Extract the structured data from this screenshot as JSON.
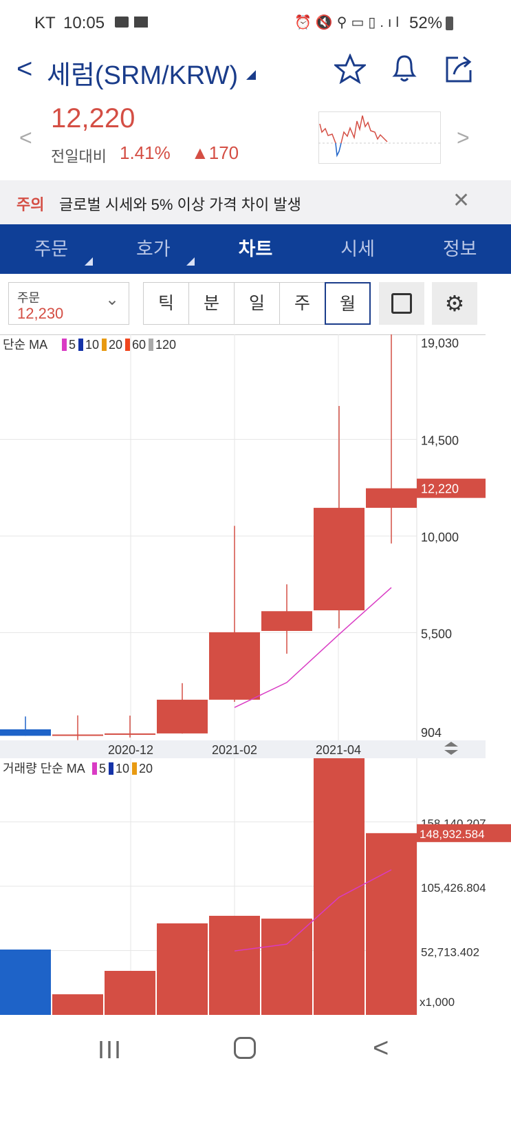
{
  "status_bar": {
    "carrier": "KT",
    "time": "10:05",
    "battery": "52%"
  },
  "header": {
    "title": "세럼(SRM/KRW)"
  },
  "price": {
    "current": "12,220",
    "change_label": "전일대비",
    "change_pct": "1.41%",
    "change_abs": "170"
  },
  "notice": {
    "tag": "주의",
    "message": "글로벌 시세와 5% 이상 가격 차이 발생"
  },
  "tabs": [
    {
      "label": "주문"
    },
    {
      "label": "호가"
    },
    {
      "label": "차트"
    },
    {
      "label": "시세"
    },
    {
      "label": "정보"
    }
  ],
  "order_box": {
    "label": "주문",
    "value": "12,230"
  },
  "periods": [
    "틱",
    "분",
    "일",
    "주",
    "월"
  ],
  "selected_period": "월",
  "colors": {
    "up": "#d44e44",
    "down": "#1e63c8",
    "ma5": "#d93bc4",
    "nav": "#0f3f97"
  },
  "chart_data": [
    {
      "type": "candlestick",
      "title": "단순 MA",
      "legend": [
        "5",
        "10",
        "20",
        "60",
        "120"
      ],
      "x_ticks": [
        "2020-12",
        "2021-02",
        "2021-04"
      ],
      "y_ticks": [
        "19,030",
        "14,500",
        "10,000",
        "5,500",
        "904"
      ],
      "y_tick_values": [
        19030,
        14500,
        10000,
        5500,
        904
      ],
      "ylim": [
        904,
        19030
      ],
      "current_label": "12,220",
      "current_value": 12220,
      "candles": [
        {
          "o": 1000,
          "h": 1600,
          "l": 700,
          "c": 700
        },
        {
          "o": 720,
          "h": 1650,
          "l": 500,
          "c": 760
        },
        {
          "o": 750,
          "h": 1640,
          "l": 620,
          "c": 810
        },
        {
          "o": 810,
          "h": 3150,
          "l": 800,
          "c": 2380
        },
        {
          "o": 2380,
          "h": 10470,
          "l": 2280,
          "c": 5520
        },
        {
          "o": 5580,
          "h": 7750,
          "l": 4520,
          "c": 6500
        },
        {
          "o": 6540,
          "h": 16050,
          "l": 5700,
          "c": 11310
        },
        {
          "o": 11310,
          "h": 19500,
          "l": 9650,
          "c": 12220
        }
      ],
      "ma5": [
        null,
        null,
        null,
        null,
        2020,
        3180,
        5420,
        7600
      ]
    },
    {
      "type": "bar",
      "title": "거래량 단순 MA",
      "legend": [
        "5",
        "10",
        "20"
      ],
      "y_ticks": [
        "158,140.207",
        "105,426.804",
        "52,713.402"
      ],
      "y_tick_values": [
        158140.207,
        105426.804,
        52713.402
      ],
      "unit_label": "x1,000",
      "ylim": [
        0,
        210300
      ],
      "current_label": "148,932.584",
      "values": [
        53560,
        16900,
        36080,
        75000,
        81200,
        78900,
        215000,
        148932.584
      ],
      "up": [
        false,
        true,
        true,
        true,
        true,
        true,
        true,
        true
      ],
      "ma5": [
        null,
        null,
        null,
        null,
        52400,
        58000,
        96400,
        118900
      ]
    }
  ]
}
